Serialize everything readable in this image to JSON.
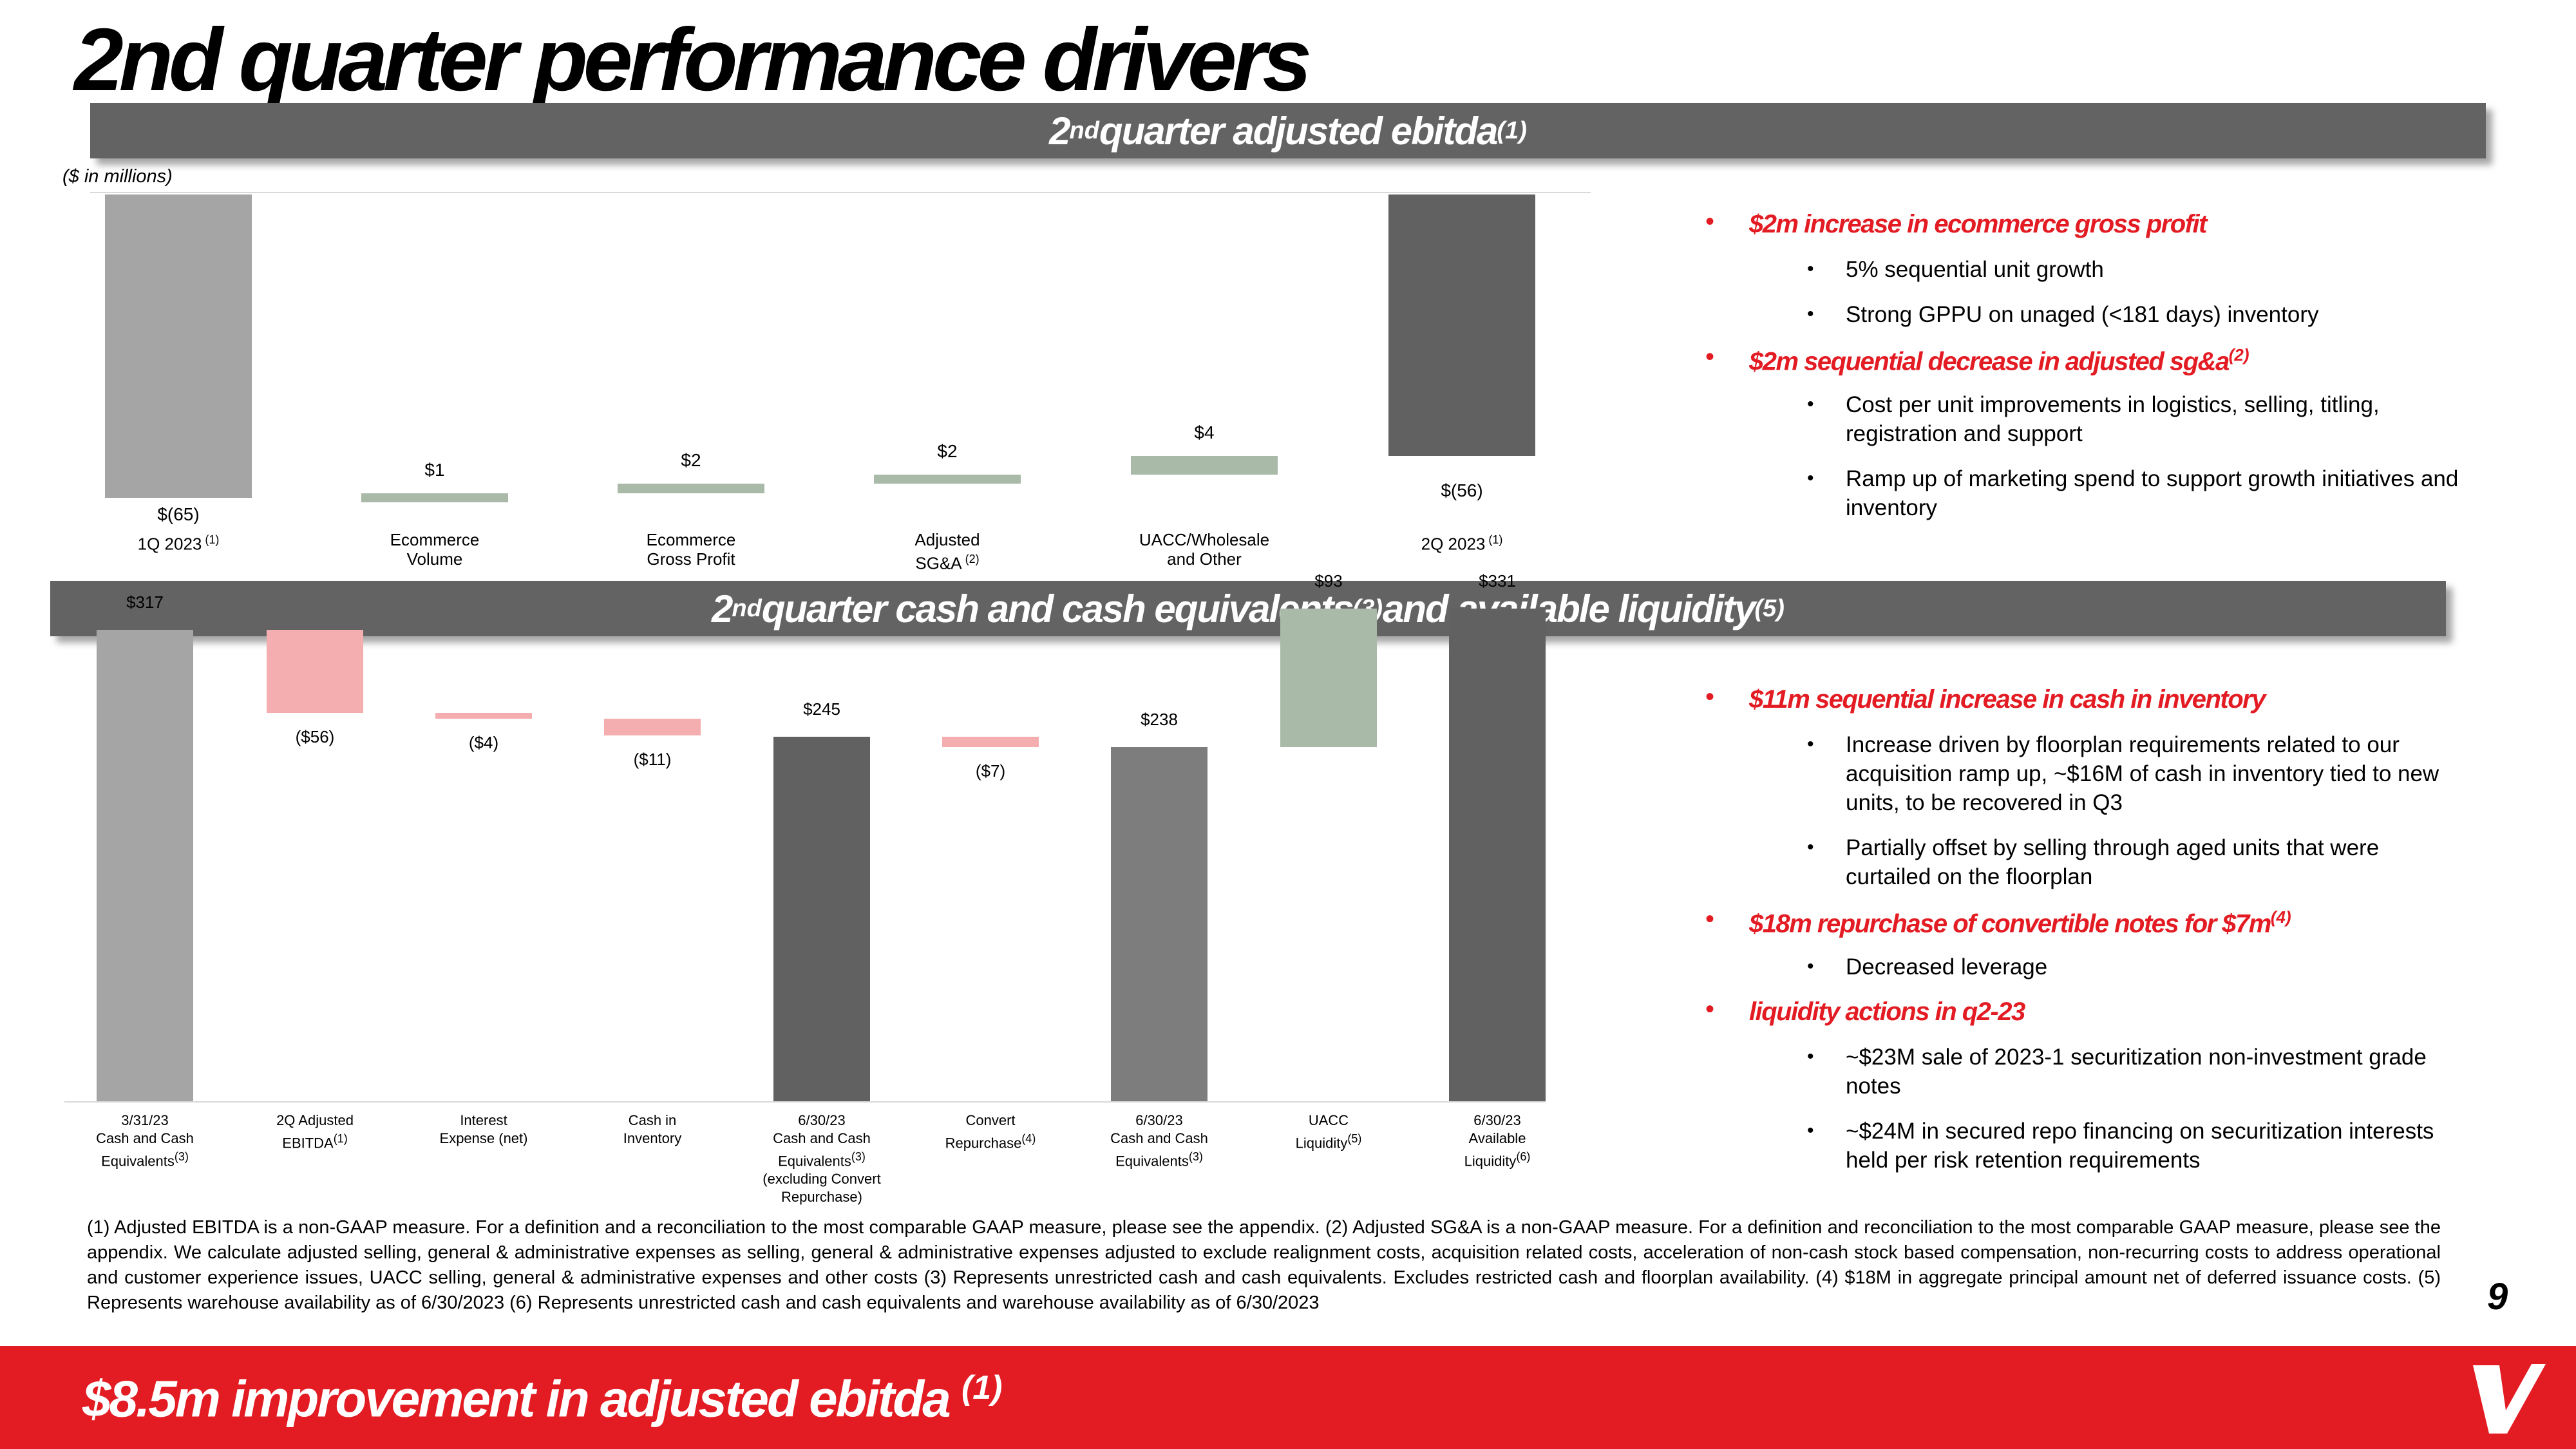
{
  "title": "2nd quarter performance drivers",
  "ebitda_section": {
    "banner_main": "2",
    "banner_nd": "nd",
    "banner_text": " quarter adjusted ebitda",
    "banner_note": "(1)",
    "units_note": "($ in millions)"
  },
  "ebitda_chart": {
    "type": "bar",
    "categories": [
      "1Q 2023",
      "Ecommerce Volume",
      "Ecommerce Gross Profit",
      "Adjusted SG&A",
      "UACC/Wholesale and Other",
      "2Q 2023"
    ],
    "values": [
      -65,
      1,
      2,
      2,
      4,
      -56
    ],
    "value_labels": [
      "$(65)",
      "$1",
      "$2",
      "$2",
      "$4",
      "$(56)"
    ],
    "cat_lines": [
      [
        "1Q 2023"
      ],
      [
        "Ecommerce",
        "Volume"
      ],
      [
        "Ecommerce",
        "Gross Profit"
      ],
      [
        "Adjusted",
        "SG&A"
      ],
      [
        "UACC/Wholesale",
        "and Other"
      ],
      [
        "2Q 2023"
      ]
    ],
    "cat_notes": [
      "(1)",
      "",
      "",
      "(2)",
      "",
      "(1)"
    ],
    "colors": {
      "total": "#a5a5a5",
      "increase": "#a9bba8",
      "ending": "#616161"
    }
  },
  "ebitda_bullets": [
    {
      "text": "$2m increase in ecommerce gross profit",
      "note": "",
      "subs": [
        "5% sequential unit growth",
        "Strong GPPU on unaged (<181 days) inventory"
      ]
    },
    {
      "text": "$2m sequential decrease in adjusted sg&a",
      "note": "(2)",
      "subs": [
        "Cost per unit improvements in logistics, selling, titling, registration and support",
        "Ramp up of marketing spend to support growth initiatives and inventory"
      ]
    }
  ],
  "cash_section": {
    "banner_main": "2",
    "banner_nd": "nd",
    "banner_text": " quarter cash and cash equivalents",
    "banner_note1": "(3)",
    "banner_text2": " and available liquidity",
    "banner_note2": "(5)"
  },
  "cash_chart": {
    "type": "bar",
    "categories": [
      "3/31/23 Cash and Cash Equivalents",
      "2Q Adjusted EBITDA",
      "Interest Expense (net)",
      "Cash in Inventory",
      "6/30/23 Cash and Cash Equivalents (excluding Convert Repurchase)",
      "Convert Repurchase",
      "6/30/23 Cash and Cash Equivalents",
      "UACC Liquidity",
      "6/30/23 Available Liquidity"
    ],
    "values": [
      317,
      -56,
      -4,
      -11,
      245,
      -7,
      238,
      93,
      331
    ],
    "value_labels": [
      "$317",
      "($56)",
      "($4)",
      "($11)",
      "$245",
      "($7)",
      "$238",
      "$93",
      "$331"
    ],
    "cat_lines": [
      [
        "3/31/23",
        "Cash and Cash",
        "Equivalents"
      ],
      [
        "2Q Adjusted",
        "EBITDA"
      ],
      [
        "Interest",
        "Expense (net)"
      ],
      [
        "Cash in",
        "Inventory"
      ],
      [
        "6/30/23",
        "Cash and Cash",
        "Equivalents",
        "(excluding Convert",
        "Repurchase)"
      ],
      [
        "Convert",
        "Repurchase"
      ],
      [
        "6/30/23",
        "Cash and Cash",
        "Equivalents"
      ],
      [
        "UACC",
        "Liquidity"
      ],
      [
        "6/30/23",
        "Available",
        "Liquidity"
      ]
    ],
    "cat_notes": [
      "(3)",
      "(1)",
      "",
      "",
      "(3)",
      "(4)",
      "(3)",
      "(5)",
      "(6)"
    ],
    "colors": {
      "start": "#a5a5a5",
      "decrease": "#f4aeb0",
      "subtotal": "#616161",
      "subtotal2": "#7d7d7d",
      "increase": "#a9bba8"
    }
  },
  "cash_bullets": [
    {
      "text": "$11m sequential increase in cash in inventory",
      "note": "",
      "subs": [
        "Increase driven by floorplan requirements related to our acquisition ramp up, ~$16M of cash in inventory tied to new units, to be recovered in Q3",
        "Partially offset by selling through aged units that were curtailed on the floorplan"
      ]
    },
    {
      "text": "$18m repurchase of convertible notes for $7m",
      "note": "(4)",
      "subs": [
        "Decreased leverage"
      ]
    },
    {
      "text": "liquidity actions in q2-23",
      "note": "",
      "subs": [
        "~$23M sale of 2023-1 securitization non-investment grade notes",
        "~$24M in secured repo financing on securitization interests held per risk retention requirements"
      ]
    }
  ],
  "footnote": "(1) Adjusted EBITDA is a non-GAAP measure. For a definition and a reconciliation to the most comparable GAAP measure, please see the appendix. (2) Adjusted SG&A is a non-GAAP measure. For a definition and reconciliation to the most comparable GAAP measure, please see the appendix. We calculate adjusted selling, general & administrative expenses as selling, general & administrative expenses adjusted to exclude realignment costs, acquisition related costs, acceleration of non-cash stock based compensation, non-recurring costs to address operational and customer experience issues, UACC selling, general & administrative expenses and other costs (3) Represents unrestricted cash and cash equivalents.  Excludes restricted cash and floorplan availability. (4) $18M in aggregate principal amount net of deferred issuance costs. (5) Represents warehouse availability as of 6/30/2023 (6) Represents unrestricted cash and cash equivalents and warehouse availability as of 6/30/2023",
  "page_number": "9",
  "footer": {
    "text": "$8.5m improvement in adjusted ebitda ",
    "note": "(1)"
  },
  "brand": {
    "accent": "#e31b23",
    "logo_icon": "vroom-v-logo-icon"
  }
}
